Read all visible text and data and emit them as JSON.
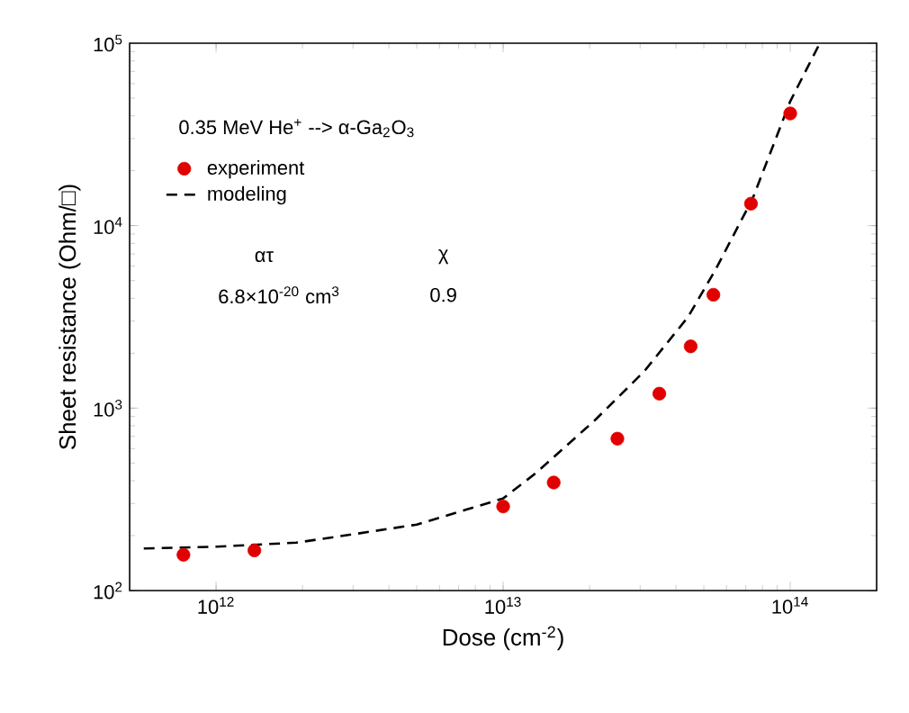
{
  "chart_data": {
    "type": "scatter",
    "xlabel": "Dose (cm$^{-2}$)",
    "ylabel": "Sheet resistance (Ohm/□)",
    "log": "xy",
    "xlim": [
      500000000000.0,
      200000000000000.0
    ],
    "ylim": [
      100,
      100000
    ],
    "xticks": [
      {
        "value": 1000000000000.0,
        "label": "10$^{12}$"
      },
      {
        "value": 10000000000000.0,
        "label": "10$^{13}$"
      },
      {
        "value": 100000000000000.0,
        "label": "10$^{14}$"
      }
    ],
    "yticks": [
      {
        "value": 100,
        "label": "10$^{2}$"
      },
      {
        "value": 1000,
        "label": "10$^{3}$"
      },
      {
        "value": 10000,
        "label": "10$^{4}$"
      },
      {
        "value": 100000,
        "label": "10$^{5}$"
      }
    ],
    "legend": "top left",
    "series": [
      {
        "name": "experiment",
        "color": "#e00000",
        "marker": "circle",
        "x": [
          770000000000.0,
          1360000000000.0,
          10000000000000.0,
          15000000000000.0,
          25000000000000.0,
          35000000000000.0,
          45000000000000.0,
          54000000000000.0,
          73000000000000.0,
          100000000000000.0
        ],
        "values": [
          157,
          166,
          289,
          391,
          680,
          1200,
          2180,
          4180,
          13200,
          41200
        ]
      },
      {
        "name": "modeling",
        "type": "line",
        "color": "#000000",
        "marker": "none",
        "line_style": "dashed",
        "x": [
          560000000000.0,
          1000000000000.0,
          1900000000000.0,
          3100000000000.0,
          5000000000000.0,
          7400000000000.0,
          10000000000000.0,
          13000000000000.0,
          21000000000000.0,
          31000000000000.0,
          44000000000000.0,
          55000000000000.0,
          74000000000000.0,
          100000000000000.0,
          126000000000000.0
        ],
        "values": [
          170,
          174,
          183,
          205,
          230,
          277,
          320,
          440,
          866,
          1590,
          3150,
          5760,
          14100,
          48000,
          98000
        ]
      }
    ],
    "annotations": [
      "0.35 MeV He$^{+}$ --> α-Ga$_{2}$O$_{3}$",
      "ατ",
      "χ",
      "6.8×10$^{-20}$ cm$^{3}$",
      "0.9"
    ]
  }
}
